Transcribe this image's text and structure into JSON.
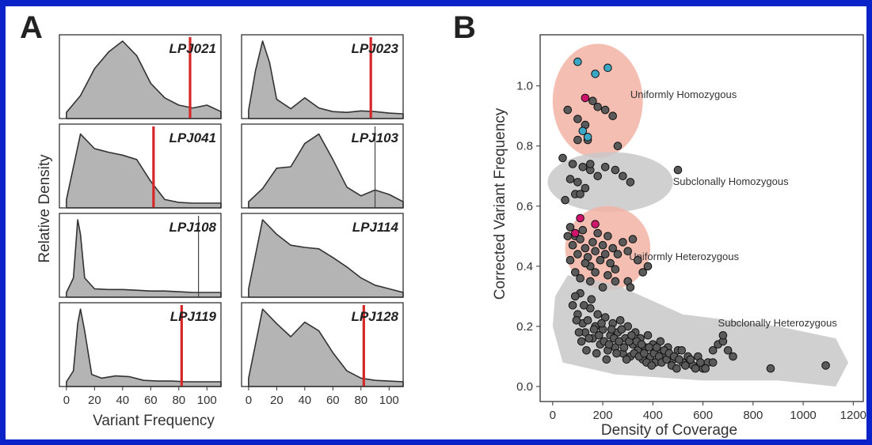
{
  "panels": {
    "a": {
      "letter": "A",
      "xlabel": "Variant Frequency",
      "ylabel": "Relative Density",
      "xticks": [
        "0",
        "20",
        "40",
        "60",
        "80",
        "100"
      ]
    },
    "b": {
      "letter": "B",
      "xlabel": "Density of Coverage",
      "ylabel": "Corrected Variant Frequency",
      "xticks": [
        "0",
        "200",
        "400",
        "600",
        "800",
        "1000",
        "1200"
      ],
      "yticks": [
        "0.0",
        "0.2",
        "0.4",
        "0.6",
        "0.8",
        "1.0"
      ]
    }
  },
  "chart_data": [
    {
      "type": "area",
      "title": "",
      "xlabel": "Variant Frequency",
      "ylabel": "Relative Density",
      "xlim": [
        -5,
        110
      ],
      "series": [
        {
          "name": "LPJ021",
          "x": [
            0,
            10,
            20,
            30,
            40,
            50,
            60,
            70,
            80,
            90,
            100,
            110
          ],
          "y": [
            0.02,
            0.25,
            0.62,
            0.85,
            1.0,
            0.8,
            0.42,
            0.22,
            0.12,
            0.08,
            0.12,
            0.03
          ],
          "marker": 88,
          "marker_color": "#d62728"
        },
        {
          "name": "LPJ023",
          "x": [
            0,
            5,
            10,
            15,
            20,
            30,
            40,
            50,
            60,
            70,
            80,
            90,
            100,
            110
          ],
          "y": [
            0.05,
            0.6,
            1.0,
            0.7,
            0.2,
            0.07,
            0.22,
            0.08,
            0.03,
            0.02,
            0.04,
            0.03,
            0.01,
            0.0
          ],
          "marker": 87,
          "marker_color": "#d62728"
        },
        {
          "name": "LPJ041",
          "x": [
            0,
            10,
            20,
            30,
            40,
            50,
            60,
            70,
            80,
            90,
            100,
            110
          ],
          "y": [
            0.05,
            0.95,
            0.75,
            0.7,
            0.66,
            0.6,
            0.3,
            0.05,
            0.01,
            0.0,
            0.0,
            0.0
          ],
          "marker": 62,
          "marker_color": "#d62728"
        },
        {
          "name": "LPJ103",
          "x": [
            0,
            10,
            20,
            30,
            40,
            50,
            60,
            70,
            80,
            90,
            100,
            110
          ],
          "y": [
            0.02,
            0.2,
            0.48,
            0.5,
            0.82,
            0.95,
            0.6,
            0.22,
            0.1,
            0.18,
            0.12,
            0.02
          ],
          "marker": 90,
          "marker_color": "#444444"
        },
        {
          "name": "LPJ108",
          "x": [
            0,
            5,
            8,
            10,
            13,
            20,
            30,
            40,
            50,
            60,
            70,
            80,
            90,
            100,
            110
          ],
          "y": [
            0.0,
            0.2,
            1.0,
            0.8,
            0.2,
            0.05,
            0.04,
            0.04,
            0.03,
            0.02,
            0.02,
            0.01,
            0.0,
            0.0,
            0.0
          ],
          "marker": 94,
          "marker_color": "#444444"
        },
        {
          "name": "LPJ114",
          "x": [
            0,
            10,
            20,
            30,
            40,
            50,
            60,
            70,
            80,
            90,
            100,
            110
          ],
          "y": [
            0.05,
            1.0,
            0.8,
            0.65,
            0.62,
            0.6,
            0.48,
            0.35,
            0.2,
            0.1,
            0.05,
            0.0
          ],
          "marker": null,
          "marker_color": null
        },
        {
          "name": "LPJ119",
          "x": [
            0,
            5,
            8,
            10,
            13,
            18,
            25,
            35,
            45,
            55,
            65,
            75,
            85,
            95,
            110
          ],
          "y": [
            0.0,
            0.15,
            0.8,
            1.0,
            0.7,
            0.1,
            0.05,
            0.08,
            0.07,
            0.02,
            0.01,
            0.01,
            0.0,
            0.0,
            0.0
          ],
          "marker": 82,
          "marker_color": "#d62728"
        },
        {
          "name": "LPJ128",
          "x": [
            0,
            10,
            20,
            30,
            40,
            50,
            60,
            70,
            80,
            90,
            100,
            110
          ],
          "y": [
            0.05,
            1.0,
            0.8,
            0.62,
            0.82,
            0.7,
            0.4,
            0.15,
            0.05,
            0.02,
            0.01,
            0.0
          ],
          "marker": 82,
          "marker_color": "#d62728"
        }
      ]
    },
    {
      "type": "scatter",
      "title": "",
      "xlabel": "Density of Coverage",
      "ylabel": "Corrected Variant Frequency",
      "xlim": [
        -50,
        1240
      ],
      "ylim": [
        -0.05,
        1.17
      ],
      "xticks": [
        0,
        200,
        400,
        600,
        800,
        1000,
        1200
      ],
      "yticks": [
        0.0,
        0.2,
        0.4,
        0.6,
        0.8,
        1.0
      ],
      "regions": [
        {
          "name": "Uniformly Homozygous",
          "color": "#f3b3a4"
        },
        {
          "name": "Subclonally Homozygous",
          "color": "#c8c8c8"
        },
        {
          "name": "Uniformly Heterozygous",
          "color": "#f3b3a4"
        },
        {
          "name": "Subclonally Heterozygous",
          "color": "#c8c8c8"
        }
      ],
      "point_colors": {
        "grey": "#5a5a5a",
        "blue": "#3ba7c4",
        "pink": "#d0146c"
      },
      "series": [
        {
          "name": "grey",
          "points": [
            [
              60,
              0.92
            ],
            [
              100,
              0.89
            ],
            [
              130,
              0.87
            ],
            [
              140,
              0.82
            ],
            [
              160,
              0.95
            ],
            [
              180,
              0.93
            ],
            [
              210,
              0.92
            ],
            [
              240,
              0.9
            ],
            [
              100,
              0.82
            ],
            [
              260,
              0.8
            ],
            [
              40,
              0.76
            ],
            [
              80,
              0.74
            ],
            [
              120,
              0.73
            ],
            [
              150,
              0.72
            ],
            [
              70,
              0.69
            ],
            [
              100,
              0.68
            ],
            [
              130,
              0.66
            ],
            [
              90,
              0.64
            ],
            [
              110,
              0.64
            ],
            [
              150,
              0.74
            ],
            [
              180,
              0.7
            ],
            [
              210,
              0.73
            ],
            [
              250,
              0.72
            ],
            [
              280,
              0.7
            ],
            [
              310,
              0.68
            ],
            [
              500,
              0.72
            ],
            [
              50,
              0.62
            ],
            [
              60,
              0.5
            ],
            [
              70,
              0.53
            ],
            [
              80,
              0.47
            ],
            [
              90,
              0.5
            ],
            [
              100,
              0.44
            ],
            [
              110,
              0.49
            ],
            [
              120,
              0.52
            ],
            [
              130,
              0.46
            ],
            [
              140,
              0.43
            ],
            [
              150,
              0.4
            ],
            [
              160,
              0.48
            ],
            [
              170,
              0.45
            ],
            [
              180,
              0.51
            ],
            [
              190,
              0.42
            ],
            [
              200,
              0.47
            ],
            [
              210,
              0.44
            ],
            [
              220,
              0.5
            ],
            [
              230,
              0.41
            ],
            [
              240,
              0.46
            ],
            [
              250,
              0.39
            ],
            [
              260,
              0.44
            ],
            [
              280,
              0.48
            ],
            [
              300,
              0.45
            ],
            [
              320,
              0.49
            ],
            [
              340,
              0.42
            ],
            [
              360,
              0.38
            ],
            [
              380,
              0.4
            ],
            [
              300,
              0.35
            ],
            [
              310,
              0.33
            ],
            [
              70,
              0.42
            ],
            [
              90,
              0.38
            ],
            [
              110,
              0.36
            ],
            [
              130,
              0.41
            ],
            [
              150,
              0.35
            ],
            [
              170,
              0.38
            ],
            [
              200,
              0.33
            ],
            [
              220,
              0.37
            ],
            [
              250,
              0.35
            ],
            [
              80,
              0.27
            ],
            [
              100,
              0.24
            ],
            [
              110,
              0.31
            ],
            [
              120,
              0.21
            ],
            [
              130,
              0.18
            ],
            [
              140,
              0.22
            ],
            [
              150,
              0.26
            ],
            [
              160,
              0.16
            ],
            [
              170,
              0.2
            ],
            [
              180,
              0.24
            ],
            [
              190,
              0.14
            ],
            [
              200,
              0.19
            ],
            [
              210,
              0.23
            ],
            [
              220,
              0.12
            ],
            [
              230,
              0.17
            ],
            [
              240,
              0.21
            ],
            [
              250,
              0.13
            ],
            [
              260,
              0.18
            ],
            [
              270,
              0.22
            ],
            [
              280,
              0.11
            ],
            [
              290,
              0.16
            ],
            [
              300,
              0.2
            ],
            [
              310,
              0.1
            ],
            [
              320,
              0.14
            ],
            [
              330,
              0.18
            ],
            [
              340,
              0.12
            ],
            [
              350,
              0.16
            ],
            [
              360,
              0.09
            ],
            [
              370,
              0.13
            ],
            [
              380,
              0.17
            ],
            [
              390,
              0.1
            ],
            [
              400,
              0.14
            ],
            [
              410,
              0.08
            ],
            [
              420,
              0.12
            ],
            [
              430,
              0.15
            ],
            [
              440,
              0.1
            ],
            [
              460,
              0.13
            ],
            [
              480,
              0.09
            ],
            [
              500,
              0.12
            ],
            [
              520,
              0.08
            ],
            [
              540,
              0.1
            ],
            [
              560,
              0.07
            ],
            [
              580,
              0.1
            ],
            [
              600,
              0.06
            ],
            [
              620,
              0.08
            ],
            [
              640,
              0.12
            ],
            [
              660,
              0.14
            ],
            [
              680,
              0.15
            ],
            [
              700,
              0.12
            ],
            [
              720,
              0.1
            ],
            [
              680,
              0.17
            ],
            [
              640,
              0.08
            ],
            [
              90,
              0.3
            ],
            [
              95,
              0.22
            ],
            [
              105,
              0.18
            ],
            [
              115,
              0.15
            ],
            [
              125,
              0.27
            ],
            [
              135,
              0.12
            ],
            [
              145,
              0.16
            ],
            [
              155,
              0.29
            ],
            [
              165,
              0.19
            ],
            [
              175,
              0.11
            ],
            [
              185,
              0.17
            ],
            [
              195,
              0.21
            ],
            [
              205,
              0.15
            ],
            [
              215,
              0.09
            ],
            [
              225,
              0.14
            ],
            [
              235,
              0.19
            ],
            [
              245,
              0.16
            ],
            [
              255,
              0.11
            ],
            [
              265,
              0.15
            ],
            [
              275,
              0.19
            ],
            [
              285,
              0.13
            ],
            [
              295,
              0.09
            ],
            [
              305,
              0.15
            ],
            [
              315,
              0.17
            ],
            [
              325,
              0.11
            ],
            [
              335,
              0.15
            ],
            [
              345,
              0.1
            ],
            [
              355,
              0.14
            ],
            [
              365,
              0.11
            ],
            [
              375,
              0.08
            ],
            [
              385,
              0.13
            ],
            [
              395,
              0.07
            ],
            [
              405,
              0.11
            ],
            [
              415,
              0.13
            ],
            [
              425,
              0.1
            ],
            [
              435,
              0.08
            ],
            [
              445,
              0.12
            ],
            [
              455,
              0.09
            ],
            [
              465,
              0.11
            ],
            [
              475,
              0.07
            ],
            [
              485,
              0.1
            ],
            [
              495,
              0.06
            ],
            [
              505,
              0.09
            ],
            [
              515,
              0.12
            ],
            [
              530,
              0.07
            ],
            [
              550,
              0.09
            ],
            [
              570,
              0.06
            ],
            [
              590,
              0.08
            ],
            [
              610,
              0.06
            ],
            [
              870,
              0.06
            ],
            [
              1090,
              0.07
            ]
          ]
        },
        {
          "name": "blue",
          "points": [
            [
              100,
              1.08
            ],
            [
              170,
              1.04
            ],
            [
              220,
              1.06
            ],
            [
              120,
              0.85
            ],
            [
              140,
              0.83
            ]
          ]
        },
        {
          "name": "pink",
          "points": [
            [
              130,
              0.96
            ],
            [
              110,
              0.56
            ],
            [
              170,
              0.54
            ],
            [
              90,
              0.51
            ]
          ]
        }
      ]
    }
  ]
}
